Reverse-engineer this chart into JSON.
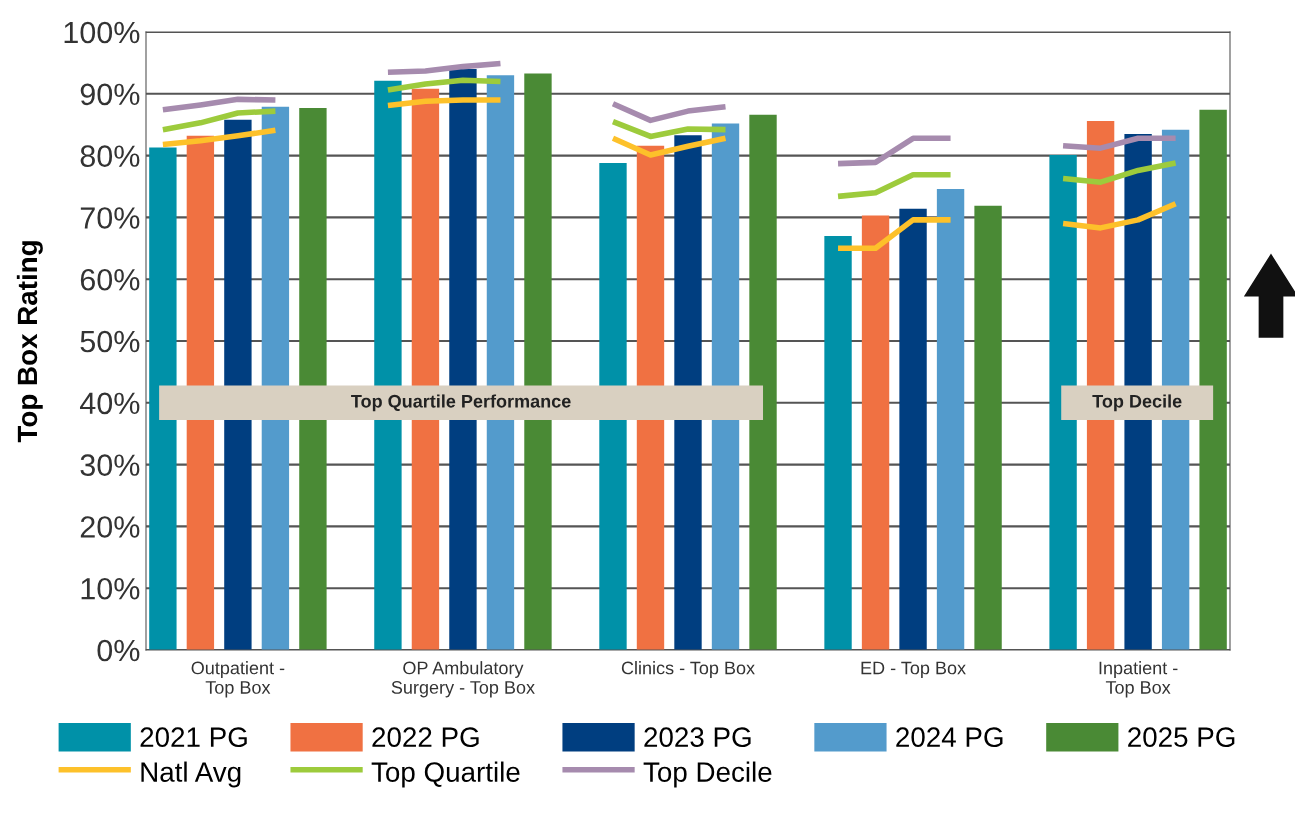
{
  "chart_data": {
    "type": "bar",
    "ylabel": "Top Box Rating",
    "categories": [
      null,
      null,
      "Outpatient -\nTop Box",
      null,
      null,
      null,
      null,
      null,
      "OP Ambulatory\nSurgery - Top Box",
      null,
      null,
      null,
      null,
      null,
      "Clinics - Top Box",
      null,
      null,
      null,
      null,
      null,
      "ED - Top Box",
      null,
      null,
      null,
      null,
      null,
      "Inpatient -\nTop Box",
      null,
      null
    ],
    "series": [
      {
        "name": "2021 PG",
        "color": "#0091a8",
        "values": [
          81.3,
          null,
          null,
          null,
          null,
          null,
          92.1,
          null,
          null,
          null,
          null,
          null,
          78.8,
          null,
          null,
          null,
          null,
          null,
          67.0,
          null,
          null,
          null,
          null,
          null,
          80.1,
          null,
          null,
          null,
          null
        ]
      },
      {
        "name": "2022 PG",
        "color": "#f07142",
        "values": [
          null,
          83.2,
          null,
          null,
          null,
          null,
          null,
          90.8,
          null,
          null,
          null,
          null,
          null,
          81.6,
          null,
          null,
          null,
          null,
          null,
          70.3,
          null,
          null,
          null,
          null,
          null,
          85.6,
          null,
          null,
          null
        ]
      },
      {
        "name": "2023 PG",
        "color": "#003e80",
        "values": [
          null,
          null,
          85.8,
          null,
          null,
          null,
          null,
          null,
          94.0,
          null,
          null,
          null,
          null,
          null,
          83.3,
          null,
          null,
          null,
          null,
          null,
          71.4,
          null,
          null,
          null,
          null,
          null,
          83.5,
          null,
          null
        ]
      },
      {
        "name": "2024 PG",
        "color": "#539bcc",
        "values": [
          null,
          null,
          null,
          87.9,
          null,
          null,
          null,
          null,
          null,
          93.0,
          null,
          null,
          null,
          null,
          null,
          85.2,
          null,
          null,
          null,
          null,
          null,
          74.6,
          null,
          null,
          null,
          null,
          null,
          84.2,
          null
        ]
      },
      {
        "name": "2025 PG",
        "color": "#4a8a35",
        "values": [
          null,
          null,
          null,
          null,
          87.7,
          null,
          null,
          null,
          null,
          null,
          93.3,
          null,
          null,
          null,
          null,
          null,
          86.6,
          null,
          null,
          null,
          null,
          null,
          71.9,
          null,
          null,
          null,
          null,
          null,
          87.4
        ]
      },
      {
        "name": "Natl Avg",
        "type": "line",
        "color": "#fdc12a",
        "values": [
          81.8,
          82.4,
          83.2,
          84.1,
          null,
          null,
          88.1,
          88.8,
          89.0,
          89.0,
          null,
          null,
          82.8,
          80.1,
          81.5,
          82.8,
          null,
          null,
          65.0,
          65.0,
          69.6,
          69.6,
          null,
          null,
          69.0,
          68.3,
          69.6,
          72.2,
          null
        ]
      },
      {
        "name": "Top Quartile",
        "type": "line",
        "color": "#9dcb3c",
        "values": [
          84.2,
          85.3,
          86.9,
          87.2,
          null,
          null,
          90.6,
          91.6,
          92.2,
          92.0,
          null,
          null,
          85.5,
          83.1,
          84.3,
          84.2,
          null,
          null,
          73.4,
          74.0,
          76.9,
          76.9,
          null,
          null,
          76.3,
          75.7,
          77.6,
          78.8,
          null
        ]
      },
      {
        "name": "Top Decile",
        "type": "line",
        "color": "#a68bae",
        "values": [
          87.4,
          88.2,
          89.1,
          89.0,
          null,
          null,
          93.5,
          93.7,
          94.4,
          94.9,
          null,
          null,
          88.4,
          85.7,
          87.2,
          87.9,
          null,
          null,
          78.7,
          78.9,
          82.8,
          82.8,
          null,
          null,
          81.6,
          81.2,
          82.8,
          82.8,
          null
        ]
      }
    ],
    "ylim": [
      0,
      100
    ],
    "yticks": [
      {
        "value": 0,
        "label": "0%"
      },
      {
        "value": 10,
        "label": "10%"
      },
      {
        "value": 20,
        "label": "20%"
      },
      {
        "value": 30,
        "label": "30%"
      },
      {
        "value": 40,
        "label": "40%"
      },
      {
        "value": 50,
        "label": "50%"
      },
      {
        "value": 60,
        "label": "60%"
      },
      {
        "value": 70,
        "label": "70%"
      },
      {
        "value": 80,
        "label": "80%"
      },
      {
        "value": 90,
        "label": "90%"
      },
      {
        "value": 100,
        "label": "100%"
      }
    ],
    "grid": "y",
    "legend": "bottom",
    "annotations": [
      "Top Quartile Performance",
      "Top Decile"
    ]
  }
}
